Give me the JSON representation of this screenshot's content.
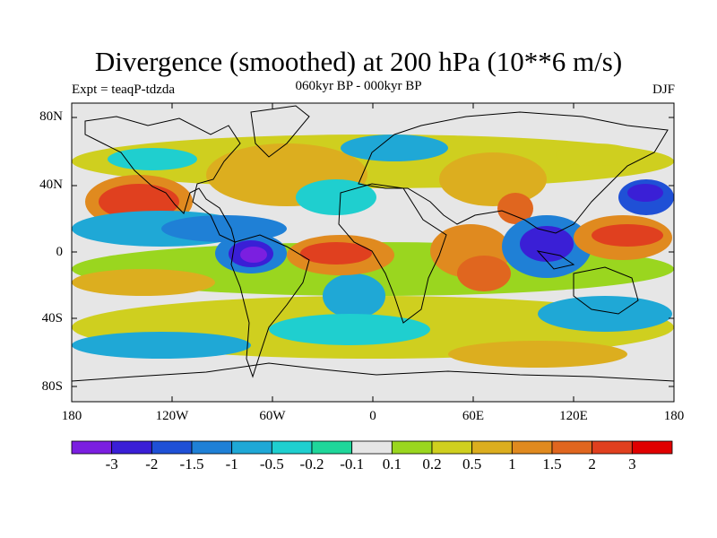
{
  "header": {
    "title": "Divergence (smoothed) at 200 hPa (10**6 m/s)",
    "experiment": "Expt = teaqP-tdzda",
    "period": "060kyr BP - 000kyr BP",
    "season": "DJF"
  },
  "axes": {
    "lat_labels": [
      "80N",
      "40N",
      "0",
      "40S",
      "80S"
    ],
    "lon_labels": [
      "180",
      "120W",
      "60W",
      "0",
      "60E",
      "120E",
      "180"
    ]
  },
  "colorbar": {
    "colors": [
      "#7b1fe0",
      "#3a1fd6",
      "#1f50d6",
      "#1f80d6",
      "#1fa8d6",
      "#1fcfcf",
      "#1fd69a",
      "#e6e6e6",
      "#9ad61f",
      "#cfcf1f",
      "#dcae1f",
      "#e08a1f",
      "#e0661f",
      "#e0401f",
      "#e00000"
    ],
    "labels": [
      "-3",
      "-2",
      "-1.5",
      "-1",
      "-0.5",
      "-0.2",
      "-0.1",
      "0.1",
      "0.2",
      "0.5",
      "1",
      "1.5",
      "2",
      "3"
    ]
  }
}
